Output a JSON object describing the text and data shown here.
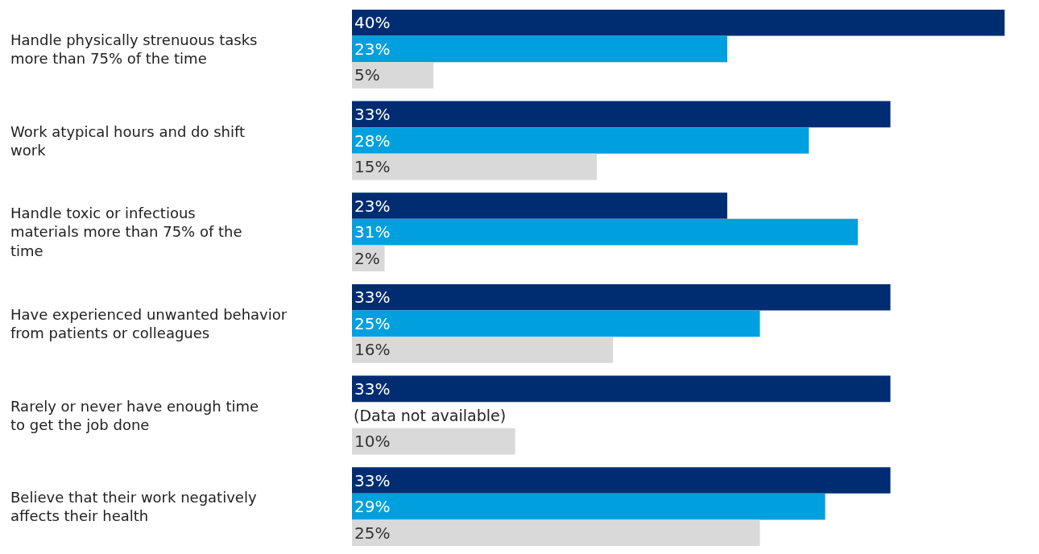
{
  "chart_data": {
    "type": "bar",
    "orientation": "horizontal",
    "categories": [
      "Handle physically strenuous tasks more than 75% of the time",
      "Work atypical hours and do shift work",
      "Handle toxic or infectious materials more than 75% of the time",
      "Have experienced unwanted behavior from patients or colleagues",
      "Rarely or never have enough time to get the job done",
      "Believe that their work negatively affects their health"
    ],
    "series": [
      {
        "color": "#002d72",
        "values": [
          40,
          33,
          23,
          33,
          33,
          33
        ],
        "value_labels": [
          "40%",
          "33%",
          "23%",
          "33%",
          "33%",
          "33%"
        ]
      },
      {
        "color": "#00a0df",
        "values": [
          23,
          28,
          31,
          25,
          null,
          29
        ],
        "value_labels": [
          "23%",
          "28%",
          "31%",
          "25%",
          null,
          "29%"
        ]
      },
      {
        "color": "#d9d9d9",
        "values": [
          5,
          15,
          2,
          16,
          10,
          25
        ],
        "value_labels": [
          "5%",
          "15%",
          "2%",
          "16%",
          "10%",
          "25%"
        ]
      }
    ],
    "annotations": [
      "(Data not available)"
    ]
  }
}
